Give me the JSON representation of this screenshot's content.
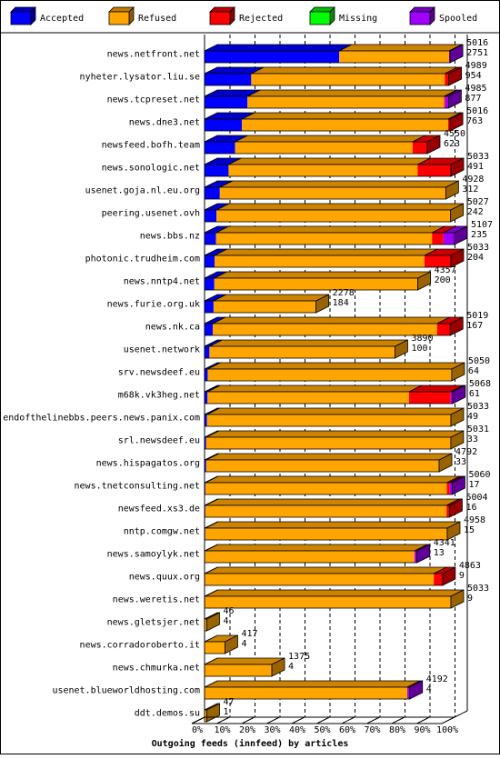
{
  "chart_data": {
    "type": "bar",
    "orientation": "horizontal",
    "stacked": true,
    "percent_scale": true,
    "xlabel": "Outgoing feeds (innfeed) by articles",
    "x_ticks": [
      "0%",
      "10%",
      "20%",
      "30%",
      "40%",
      "50%",
      "60%",
      "70%",
      "80%",
      "90%",
      "100%"
    ],
    "xlim": [
      0,
      100
    ],
    "max_total": 5107,
    "legend": {
      "position": "top",
      "items": [
        {
          "name": "Accepted",
          "color": "#0000ff"
        },
        {
          "name": "Refused",
          "color": "#ffa500"
        },
        {
          "name": "Rejected",
          "color": "#ff0000"
        },
        {
          "name": "Missing",
          "color": "#00ff00"
        },
        {
          "name": "Spooled",
          "color": "#a000ff"
        }
      ]
    },
    "rows": [
      {
        "name": "news.netfront.net",
        "total": "5016",
        "accepted": "2751",
        "rejected": 0,
        "missing": 0,
        "spooled": 20
      },
      {
        "name": "nyheter.lysator.liu.se",
        "total": "4989",
        "accepted": "954",
        "rejected": 80,
        "missing": 0,
        "spooled": 0
      },
      {
        "name": "news.tcpreset.net",
        "total": "4985",
        "accepted": "877",
        "rejected": 20,
        "missing": 0,
        "spooled": 70
      },
      {
        "name": "news.dne3.net",
        "total": "5016",
        "accepted": "763",
        "rejected": 40,
        "missing": 0,
        "spooled": 0
      },
      {
        "name": "newsfeed.bofh.team",
        "total": "4550",
        "accepted": "623",
        "rejected": 300,
        "missing": 0,
        "spooled": 0
      },
      {
        "name": "news.sonologic.net",
        "total": "5033",
        "accepted": "491",
        "rejected": 680,
        "missing": 0,
        "spooled": 0
      },
      {
        "name": "usenet.goja.nl.eu.org",
        "total": "4928",
        "accepted": "312",
        "rejected": 0,
        "missing": 0,
        "spooled": 0
      },
      {
        "name": "peering.usenet.ovh",
        "total": "5027",
        "accepted": "242",
        "rejected": 0,
        "missing": 0,
        "spooled": 0
      },
      {
        "name": "news.bbs.nz",
        "total": "5107",
        "accepted": "235",
        "rejected": 230,
        "missing": 0,
        "spooled": 230
      },
      {
        "name": "photonic.trudheim.com",
        "total": "5033",
        "accepted": "204",
        "rejected": 540,
        "missing": 0,
        "spooled": 0
      },
      {
        "name": "news.nntp4.net",
        "total": "4357",
        "accepted": "200",
        "rejected": 0,
        "missing": 0,
        "spooled": 0
      },
      {
        "name": "news.furie.org.uk",
        "total": "2278",
        "accepted": "184",
        "rejected": 0,
        "missing": 0,
        "spooled": 0
      },
      {
        "name": "news.nk.ca",
        "total": "5019",
        "accepted": "167",
        "rejected": 270,
        "missing": 0,
        "spooled": 0
      },
      {
        "name": "usenet.network",
        "total": "3890",
        "accepted": "100",
        "rejected": 0,
        "missing": 0,
        "spooled": 0
      },
      {
        "name": "srv.newsdeef.eu",
        "total": "5050",
        "accepted": "64",
        "rejected": 0,
        "missing": 0,
        "spooled": 0
      },
      {
        "name": "m68k.vk3heg.net",
        "total": "5068",
        "accepted": "61",
        "rejected": 850,
        "missing": 0,
        "spooled": 40
      },
      {
        "name": "endofthelinebbs.peers.news.panix.com",
        "total": "5033",
        "accepted": "49",
        "rejected": 0,
        "missing": 0,
        "spooled": 0
      },
      {
        "name": "srl.newsdeef.eu",
        "total": "5031",
        "accepted": "33",
        "rejected": 0,
        "missing": 0,
        "spooled": 0
      },
      {
        "name": "news.hispagatos.org",
        "total": "4792",
        "accepted": "33",
        "rejected": 0,
        "missing": 0,
        "spooled": 0
      },
      {
        "name": "news.tnetconsulting.net",
        "total": "5060",
        "accepted": "17",
        "rejected": 60,
        "missing": 0,
        "spooled": 50
      },
      {
        "name": "newsfeed.xs3.de",
        "total": "5004",
        "accepted": "16",
        "rejected": 60,
        "missing": 0,
        "spooled": 0
      },
      {
        "name": "nntp.comgw.net",
        "total": "4958",
        "accepted": "15",
        "rejected": 0,
        "missing": 0,
        "spooled": 0
      },
      {
        "name": "news.samoylyk.net",
        "total": "4341",
        "accepted": "13",
        "rejected": 0,
        "missing": 0,
        "spooled": 50
      },
      {
        "name": "news.quux.org",
        "total": "4863",
        "accepted": "9",
        "rejected": 180,
        "missing": 0,
        "spooled": 0
      },
      {
        "name": "news.weretis.net",
        "total": "5033",
        "accepted": "9",
        "rejected": 0,
        "missing": 0,
        "spooled": 0
      },
      {
        "name": "news.gletsjer.net",
        "total": "46",
        "accepted": "4",
        "rejected": 0,
        "missing": 0,
        "spooled": 0
      },
      {
        "name": "news.corradoroberto.it",
        "total": "417",
        "accepted": "4",
        "rejected": 0,
        "missing": 0,
        "spooled": 0
      },
      {
        "name": "news.chmurka.net",
        "total": "1375",
        "accepted": "4",
        "rejected": 0,
        "missing": 0,
        "spooled": 0
      },
      {
        "name": "usenet.blueworldhosting.com",
        "total": "4192",
        "accepted": "4",
        "rejected": 0,
        "missing": 0,
        "spooled": 50
      },
      {
        "name": "ddt.demos.su",
        "total": "47",
        "accepted": "1",
        "rejected": 0,
        "missing": 0,
        "spooled": 0
      }
    ]
  }
}
